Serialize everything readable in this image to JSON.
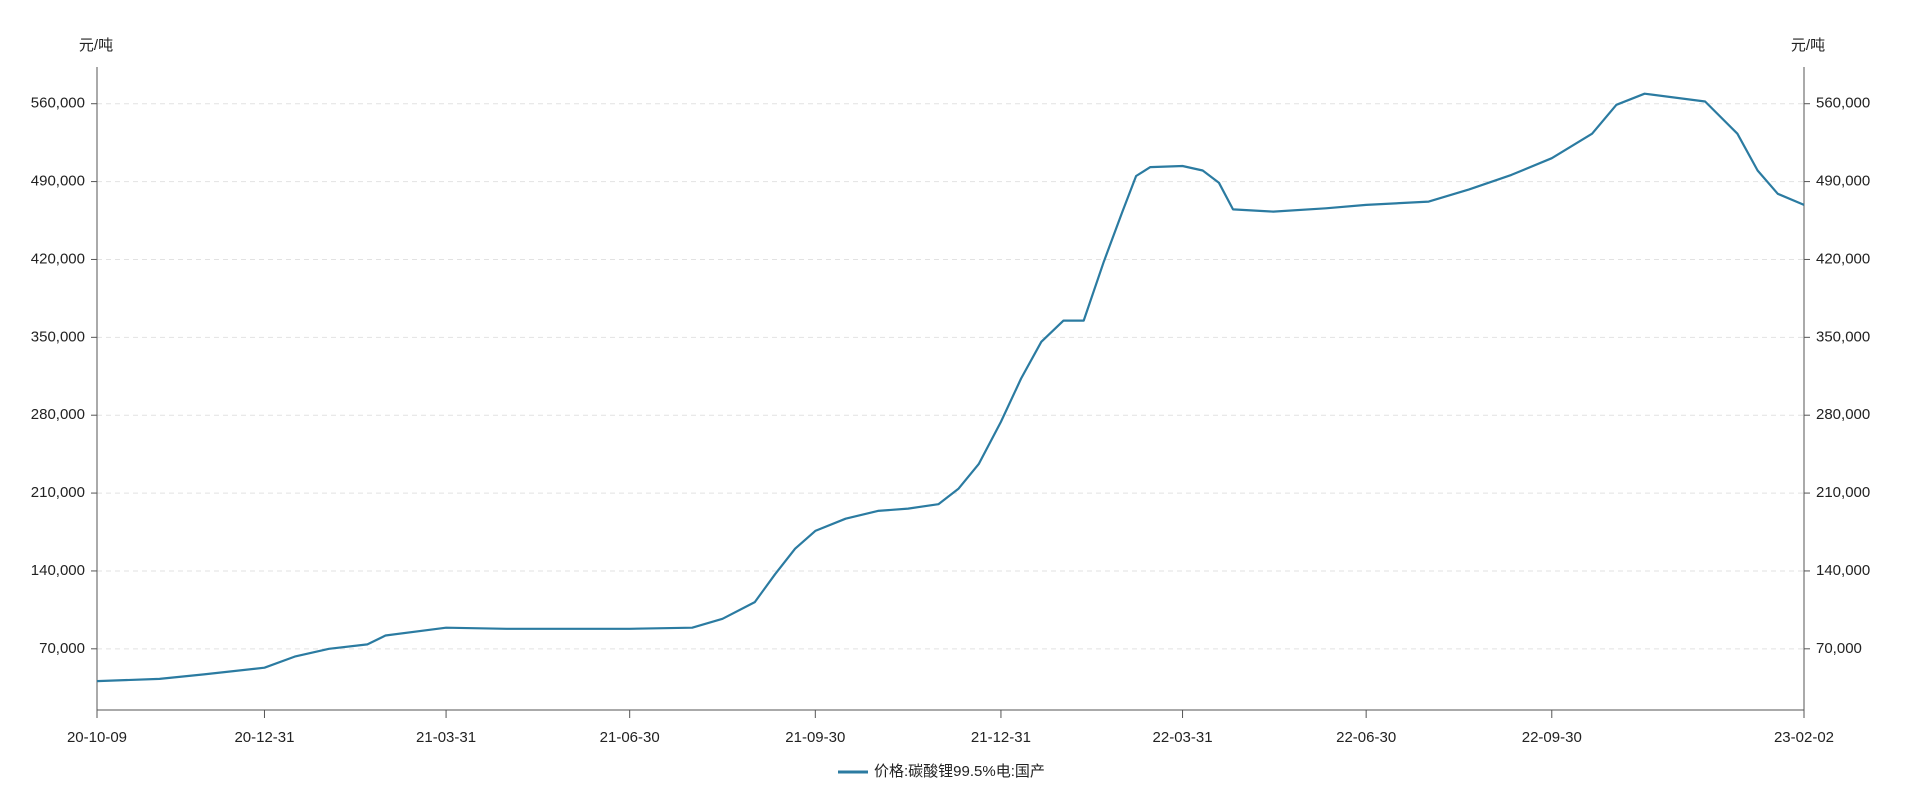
{
  "chart_data": {
    "type": "line",
    "ylabel": "元/吨",
    "y2label": "元/吨",
    "x": [
      "20-10-09",
      "20-11-09",
      "20-12-01",
      "20-12-31",
      "21-01-15",
      "21-02-01",
      "21-02-20",
      "21-03-01",
      "21-03-31",
      "21-04-30",
      "21-05-31",
      "21-06-30",
      "21-07-31",
      "21-08-15",
      "21-08-31",
      "21-09-10",
      "21-09-20",
      "21-09-30",
      "21-10-15",
      "21-10-31",
      "21-11-15",
      "21-11-30",
      "21-12-10",
      "21-12-20",
      "21-12-31",
      "22-01-10",
      "22-01-20",
      "22-01-31",
      "22-02-10",
      "22-02-20",
      "22-03-01",
      "22-03-08",
      "22-03-15",
      "22-03-31",
      "22-04-10",
      "22-04-18",
      "22-04-25",
      "22-05-15",
      "22-06-10",
      "22-06-30",
      "22-07-31",
      "22-08-20",
      "22-09-10",
      "22-09-30",
      "22-10-20",
      "22-11-01",
      "22-11-15",
      "22-12-15",
      "22-12-31",
      "23-01-10",
      "23-01-20",
      "23-02-02"
    ],
    "series": [
      {
        "name": "价格:碳酸锂99.5%电:国产",
        "color": "#2b7ba1",
        "values": [
          41000,
          43000,
          47000,
          53000,
          63000,
          70000,
          74000,
          82000,
          89000,
          88000,
          88000,
          88000,
          89000,
          97000,
          112000,
          137000,
          160000,
          176000,
          187000,
          194000,
          196000,
          200000,
          214000,
          236000,
          274000,
          313000,
          346000,
          365000,
          365000,
          418000,
          462000,
          495000,
          503000,
          504000,
          500000,
          489000,
          465000,
          463000,
          466000,
          469000,
          472000,
          483000,
          496000,
          511000,
          533000,
          559000,
          569000,
          562000,
          533000,
          500000,
          479000,
          469000
        ]
      }
    ],
    "xlim": [
      "20-10-09",
      "23-02-02"
    ],
    "xticks": [
      "20-10-09",
      "20-12-31",
      "21-03-31",
      "21-06-30",
      "21-09-30",
      "21-12-31",
      "22-03-31",
      "22-06-30",
      "22-09-30",
      "23-02-02"
    ],
    "ylim": [
      15000,
      593000
    ],
    "yticks": [
      {
        "value": 70000,
        "label": "70,000"
      },
      {
        "value": 140000,
        "label": "140,000"
      },
      {
        "value": 210000,
        "label": "210,000"
      },
      {
        "value": 280000,
        "label": "280,000"
      },
      {
        "value": 350000,
        "label": "350,000"
      },
      {
        "value": 420000,
        "label": "420,000"
      },
      {
        "value": 490000,
        "label": "490,000"
      },
      {
        "value": 560000,
        "label": "560,000"
      }
    ],
    "y2lim": [
      15000,
      593000
    ],
    "y2ticks": [
      {
        "value": 70000,
        "label": "70,000"
      },
      {
        "value": 140000,
        "label": "140,000"
      },
      {
        "value": 210000,
        "label": "210,000"
      },
      {
        "value": 280000,
        "label": "280,000"
      },
      {
        "value": 350000,
        "label": "350,000"
      },
      {
        "value": 420000,
        "label": "420,000"
      },
      {
        "value": 490000,
        "label": "490,000"
      },
      {
        "value": 560000,
        "label": "560,000"
      }
    ],
    "grid": true
  }
}
